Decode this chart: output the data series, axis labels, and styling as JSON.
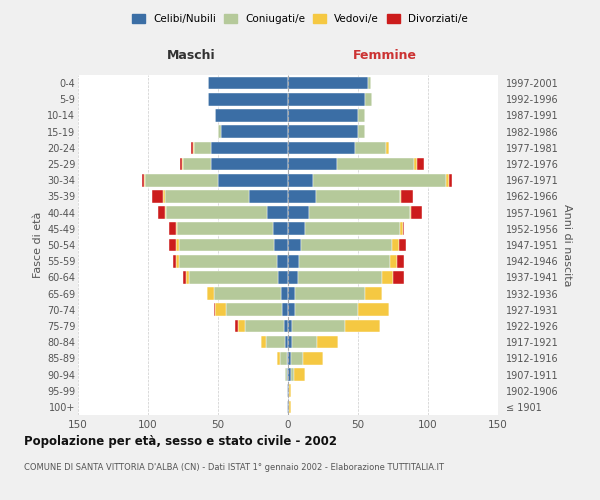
{
  "age_groups": [
    "100+",
    "95-99",
    "90-94",
    "85-89",
    "80-84",
    "75-79",
    "70-74",
    "65-69",
    "60-64",
    "55-59",
    "50-54",
    "45-49",
    "40-44",
    "35-39",
    "30-34",
    "25-29",
    "20-24",
    "15-19",
    "10-14",
    "5-9",
    "0-4"
  ],
  "birth_years": [
    "≤ 1901",
    "1902-1906",
    "1907-1911",
    "1912-1916",
    "1917-1921",
    "1922-1926",
    "1927-1931",
    "1932-1936",
    "1937-1941",
    "1942-1946",
    "1947-1951",
    "1952-1956",
    "1957-1961",
    "1962-1966",
    "1967-1971",
    "1972-1976",
    "1977-1981",
    "1982-1986",
    "1987-1991",
    "1992-1996",
    "1997-2001"
  ],
  "colors": {
    "celibi": "#3b6ea5",
    "coniugati": "#b5c99a",
    "vedovi": "#f5c842",
    "divorziati": "#cc1c1c"
  },
  "males": {
    "celibi": [
      1,
      1,
      1,
      1,
      2,
      3,
      4,
      5,
      7,
      8,
      10,
      11,
      15,
      28,
      50,
      55,
      55,
      48,
      52,
      57,
      57
    ],
    "coniugati": [
      0,
      0,
      1,
      5,
      14,
      28,
      40,
      48,
      64,
      70,
      68,
      68,
      72,
      60,
      52,
      20,
      12,
      2,
      0,
      0,
      0
    ],
    "vedovi": [
      0,
      0,
      0,
      2,
      3,
      5,
      8,
      5,
      2,
      2,
      2,
      1,
      1,
      1,
      1,
      1,
      1,
      0,
      0,
      0,
      0
    ],
    "divorziati": [
      0,
      0,
      0,
      0,
      0,
      2,
      1,
      0,
      2,
      2,
      5,
      5,
      5,
      8,
      1,
      1,
      1,
      0,
      0,
      0,
      0
    ]
  },
  "females": {
    "celibi": [
      1,
      1,
      2,
      2,
      3,
      3,
      5,
      5,
      7,
      8,
      9,
      12,
      15,
      20,
      18,
      35,
      48,
      50,
      50,
      55,
      57
    ],
    "coniugati": [
      0,
      0,
      2,
      9,
      18,
      38,
      45,
      50,
      60,
      65,
      65,
      68,
      72,
      60,
      95,
      55,
      22,
      5,
      5,
      5,
      2
    ],
    "vedovi": [
      1,
      1,
      8,
      14,
      15,
      25,
      22,
      12,
      8,
      5,
      5,
      2,
      1,
      1,
      2,
      2,
      2,
      0,
      0,
      0,
      0
    ],
    "divorziati": [
      0,
      0,
      0,
      0,
      0,
      0,
      0,
      0,
      8,
      5,
      5,
      1,
      8,
      8,
      2,
      5,
      0,
      0,
      0,
      0,
      0
    ]
  },
  "title": "Popolazione per età, sesso e stato civile - 2002",
  "subtitle": "COMUNE DI SANTA VITTORIA D'ALBA (CN) - Dati ISTAT 1° gennaio 2002 - Elaborazione TUTTITALIA.IT",
  "ylabel_left": "Fasce di età",
  "ylabel_right": "Anni di nascita",
  "xlabel_left": "Maschi",
  "xlabel_right": "Femmine",
  "xlim": 150,
  "legend_labels": [
    "Celibi/Nubili",
    "Coniugati/e",
    "Vedovi/e",
    "Divorziati/e"
  ],
  "bg_color": "#f0f0f0",
  "plot_bg_color": "#ffffff"
}
